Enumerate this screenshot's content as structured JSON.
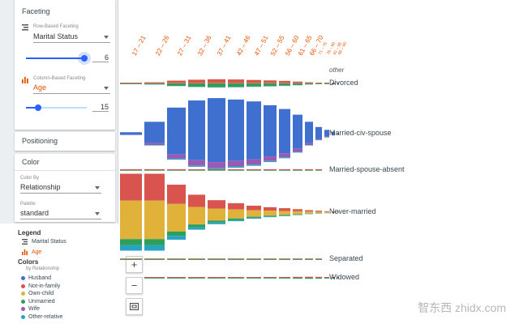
{
  "sidebar": {
    "faceting": {
      "title": "Faceting",
      "row_label": "Row-Based Faceting",
      "row_value": "Marital Status",
      "row_bins": "6",
      "col_label": "Column-Based Faceting",
      "col_value": "Age",
      "col_bins": "15"
    },
    "positioning": {
      "title": "Positioning"
    },
    "color": {
      "title": "Color",
      "color_by_label": "Color By",
      "color_by_value": "Relationship",
      "palette_label": "Palette",
      "palette_value": "standard"
    }
  },
  "legend": {
    "title": "Legend",
    "row_field": "Marital Status",
    "col_field": "Age",
    "colors_title": "Colors",
    "colors_sub": "by Relationship",
    "items": [
      {
        "label": "Husband",
        "color": "#3f6fcf"
      },
      {
        "label": "Not-in-family",
        "color": "#d9534f"
      },
      {
        "label": "Own-child",
        "color": "#e0b23a"
      },
      {
        "label": "Unmarried",
        "color": "#2e9e5b"
      },
      {
        "label": "Wife",
        "color": "#9b59b6"
      },
      {
        "label": "Other-relative",
        "color": "#26a4c4"
      }
    ]
  },
  "controls": {
    "zoom_in": "+",
    "zoom_out": "−"
  },
  "columns": [
    "17 – 21",
    "22 – 26",
    "27 – 31",
    "32 – 36",
    "37 – 41",
    "42 – 46",
    "47 – 51",
    "52 – 55",
    "56 – 60",
    "61 – 65",
    "66 – 70",
    "71 – 75",
    "76 – 80",
    "81 – 85",
    "86 – 90"
  ],
  "other_label": "other",
  "rows": [
    "Divorced",
    "Married-civ-spouse",
    "Married-spouse-absent",
    "Never-married",
    "Separated",
    "Widowed"
  ],
  "watermark": "智东西 zhidx.com",
  "chart_data": {
    "type": "bar",
    "note_rows": [
      "Divorced",
      "Married-civ-spouse",
      "Married-spouse-absent",
      "Never-married",
      "Separated",
      "Widowed"
    ],
    "categories": [
      "17 – 21",
      "22 – 26",
      "27 – 31",
      "32 – 36",
      "37 – 41",
      "42 – 46",
      "47 – 51",
      "52 – 55",
      "56 – 60",
      "61 – 65",
      "66 – 70",
      "71 – 75",
      "76 – 80",
      "81 – 85",
      "86 – 90"
    ],
    "cells": {
      "Divorced": [
        2,
        5,
        12,
        16,
        18,
        17,
        15,
        13,
        11,
        8,
        5,
        3,
        2,
        1,
        1
      ],
      "Married-civ-spouse": [
        3,
        25,
        55,
        70,
        75,
        72,
        68,
        60,
        52,
        40,
        25,
        14,
        8,
        4,
        2
      ],
      "Married-spouse-absent": [
        1,
        2,
        3,
        3,
        3,
        3,
        2,
        2,
        2,
        1,
        1,
        1,
        0,
        0,
        0
      ],
      "Never-married": [
        90,
        80,
        55,
        35,
        24,
        18,
        13,
        10,
        8,
        6,
        4,
        3,
        2,
        1,
        1
      ],
      "Separated": [
        1,
        4,
        6,
        6,
        6,
        5,
        4,
        3,
        3,
        2,
        1,
        1,
        0,
        0,
        0
      ],
      "Widowed": [
        0,
        1,
        1,
        2,
        3,
        4,
        6,
        7,
        8,
        9,
        10,
        9,
        8,
        5,
        3
      ]
    }
  }
}
